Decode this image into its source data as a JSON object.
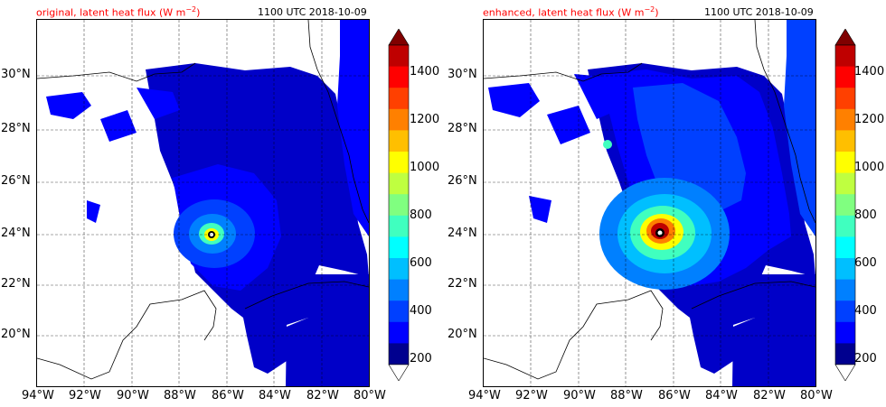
{
  "panels": [
    {
      "id": "original",
      "title_left": "original, latent heat flux (W m",
      "title_sup": "−2",
      "title_close": ")",
      "title_right": "1100 UTC 2018-10-09"
    },
    {
      "id": "enhanced",
      "title_left": "enhanced, latent heat flux (W m",
      "title_sup": "−2",
      "title_close": ")",
      "title_right": "1100 UTC 2018-10-09"
    }
  ],
  "map": {
    "lon_range": [
      -94,
      -80
    ],
    "lat_range": [
      18.2,
      32.1
    ],
    "lon_ticks": [
      "94°W",
      "92°W",
      "90°W",
      "88°W",
      "86°W",
      "84°W",
      "82°W",
      "80°W"
    ],
    "lat_ticks": [
      "20°N",
      "22°N",
      "24°N",
      "26°N",
      "28°N",
      "30°N"
    ],
    "storm_center": {
      "lon": -86.7,
      "lat": 24.0
    }
  },
  "colorbar": {
    "levels": [
      "200",
      "400",
      "600",
      "800",
      "1000",
      "1200",
      "1400"
    ],
    "range": [
      200,
      1500
    ],
    "colors": [
      "#00008f",
      "#0000ff",
      "#0040ff",
      "#0080ff",
      "#00bfff",
      "#00ffff",
      "#40ffbf",
      "#80ff80",
      "#bfff40",
      "#ffff00",
      "#ffbf00",
      "#ff8000",
      "#ff4000",
      "#ff0000",
      "#bf0000"
    ],
    "over_color": "#800000",
    "under_color": "#ffffff"
  },
  "colors": {
    "ocean_low": "#0000c8",
    "ocean_mid": "#0000ff",
    "title_red": "#ff0000"
  }
}
